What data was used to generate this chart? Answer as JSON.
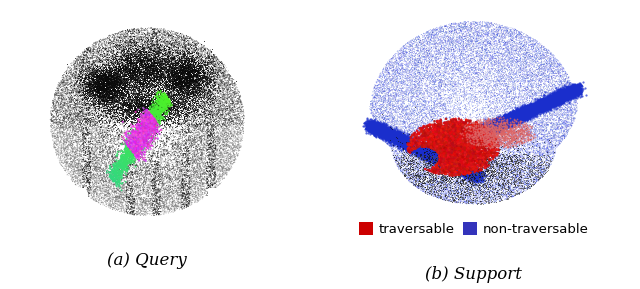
{
  "caption_left": "(a) Query",
  "caption_right": "(b) Support",
  "legend_items": [
    {
      "label": "traversable",
      "color": "#cc0000"
    },
    {
      "label": "non-traversable",
      "color": "#3333bb"
    }
  ],
  "background_color": "#ffffff",
  "caption_fontsize": 12,
  "legend_fontsize": 9.5,
  "fig_width": 6.4,
  "fig_height": 2.89,
  "dpi": 100
}
